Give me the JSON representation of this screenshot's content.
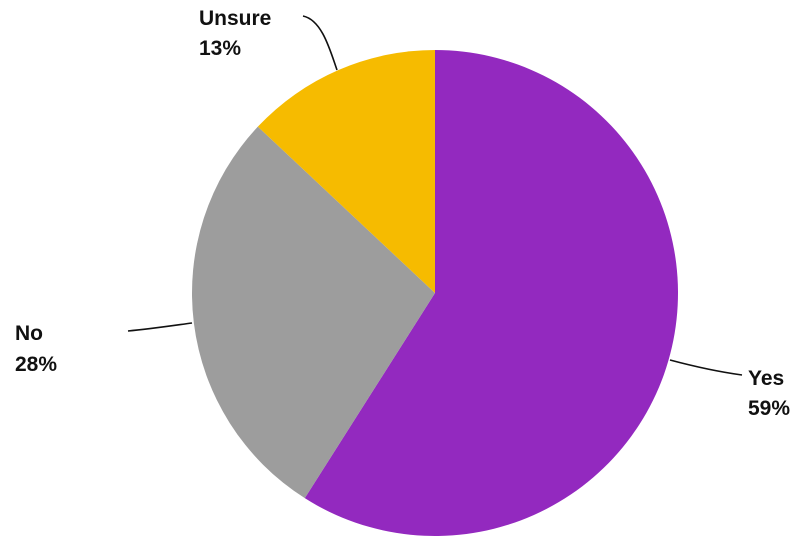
{
  "chart_data": {
    "type": "pie",
    "title": "",
    "slices": [
      {
        "label": "Yes",
        "value": 59,
        "value_label": "59%",
        "color": "#9329bf"
      },
      {
        "label": "No",
        "value": 28,
        "value_label": "28%",
        "color": "#9d9d9d"
      },
      {
        "label": "Unsure",
        "value": 13,
        "value_label": "13%",
        "color": "#f6bb00"
      }
    ],
    "start_angle": "12 o'clock",
    "direction": "clockwise",
    "label_placement": "outside with leader lines",
    "legend": "none"
  }
}
